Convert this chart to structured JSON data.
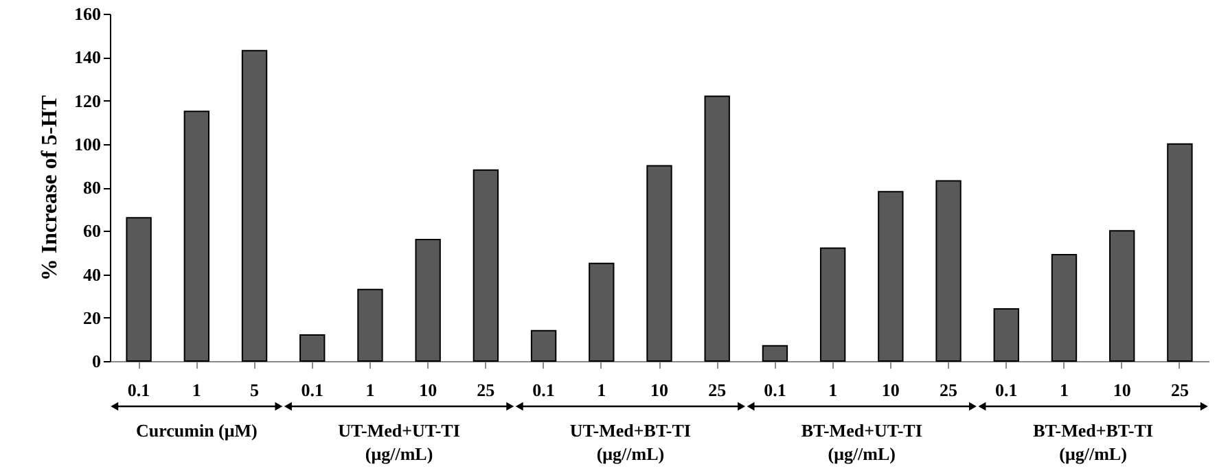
{
  "chart_data": {
    "type": "bar",
    "ylabel": "% Increase of 5-HT",
    "categories": [
      "0.1",
      "1",
      "5",
      "0.1",
      "1",
      "10",
      "25",
      "0.1",
      "1",
      "10",
      "25",
      "0.1",
      "1",
      "10",
      "25",
      "0.1",
      "1",
      "10",
      "25"
    ],
    "values": [
      66,
      115,
      143,
      12,
      33,
      56,
      88,
      14,
      45,
      90,
      122,
      7,
      52,
      78,
      83,
      24,
      49,
      60,
      100
    ],
    "color": "#595959",
    "ylim": [
      0,
      160
    ],
    "yticks": [
      0,
      20,
      40,
      60,
      80,
      100,
      120,
      140,
      160
    ],
    "grid": false,
    "annotations": [
      "Curcumin (μM)",
      "UT-Med+UT-TI\n(μg//mL)",
      "UT-Med+BT-TI\n(μg//mL)",
      "BT-Med+UT-TI\n(μg//mL)",
      "BT-Med+BT-TI\n(μg//mL)"
    ]
  }
}
